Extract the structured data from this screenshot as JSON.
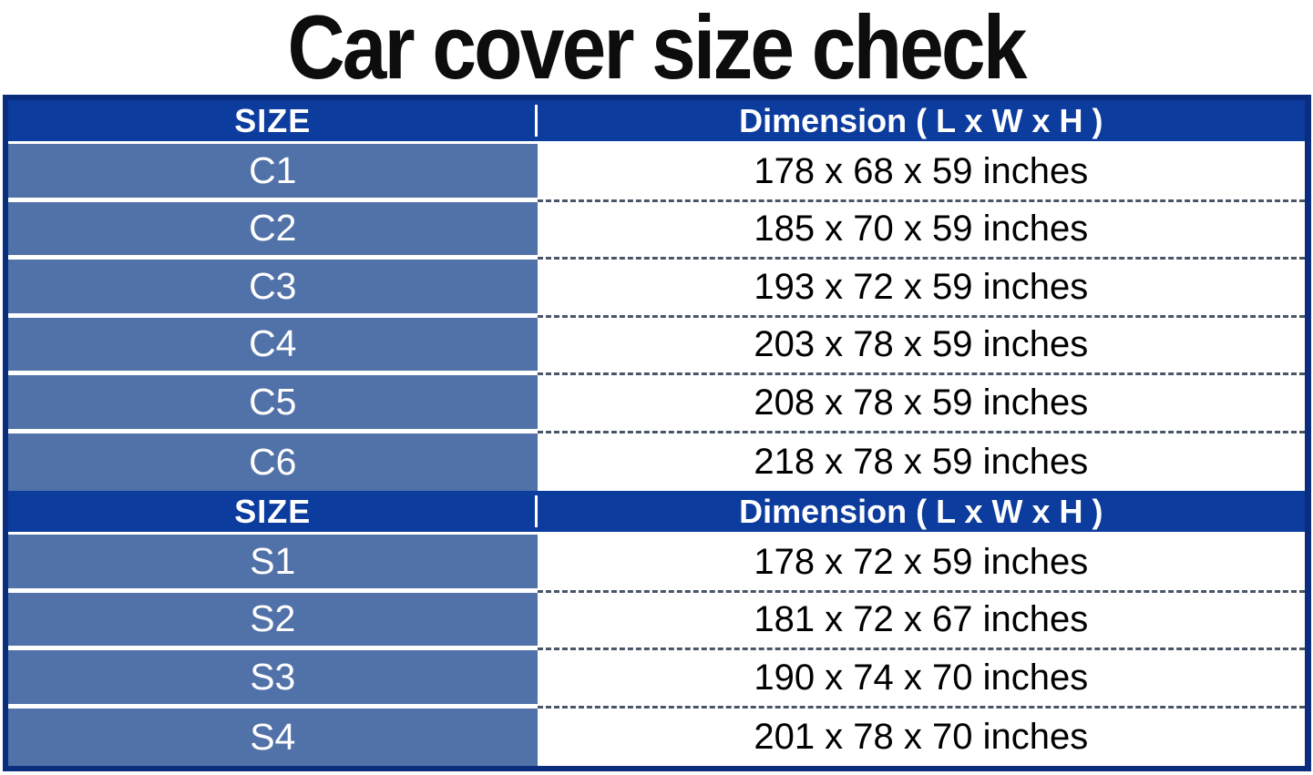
{
  "title": "Car cover size check",
  "colors": {
    "header_bg": "#0c3c9d",
    "row_label_bg": "#5171a9",
    "outer_border": "#0a2e7d",
    "dashed_separator": "#4a5568",
    "header_text": "#ffffff",
    "row_label_text": "#ffffff",
    "dimension_text": "#000000"
  },
  "tables": [
    {
      "header": {
        "size": "SIZE",
        "dimension": "Dimension ( L x W x H )"
      },
      "rows": [
        {
          "size": "C1",
          "dimension": "178 x 68 x 59 inches"
        },
        {
          "size": "C2",
          "dimension": "185 x 70 x 59 inches"
        },
        {
          "size": "C3",
          "dimension": "193 x 72 x 59 inches"
        },
        {
          "size": "C4",
          "dimension": "203 x 78 x 59 inches"
        },
        {
          "size": "C5",
          "dimension": "208 x 78 x 59 inches"
        },
        {
          "size": "C6",
          "dimension": "218 x 78 x 59 inches"
        }
      ]
    },
    {
      "header": {
        "size": "SIZE",
        "dimension": "Dimension ( L x W x H )"
      },
      "rows": [
        {
          "size": "S1",
          "dimension": "178 x 72 x 59 inches"
        },
        {
          "size": "S2",
          "dimension": "181 x 72 x 67 inches"
        },
        {
          "size": "S3",
          "dimension": "190 x 74 x 70 inches"
        },
        {
          "size": "S4",
          "dimension": "201 x 78 x 70 inches"
        }
      ]
    }
  ],
  "chart_data": [
    {
      "type": "table",
      "title": "Car cover size check - C sizes",
      "columns": [
        "SIZE",
        "Dimension ( L x W x H )"
      ],
      "rows": [
        [
          "C1",
          "178 x 68 x 59 inches"
        ],
        [
          "C2",
          "185 x 70 x 59 inches"
        ],
        [
          "C3",
          "193 x 72 x 59 inches"
        ],
        [
          "C4",
          "203 x 78 x 59 inches"
        ],
        [
          "C5",
          "208 x 78 x 59 inches"
        ],
        [
          "C6",
          "218 x 78 x 59 inches"
        ]
      ]
    },
    {
      "type": "table",
      "title": "Car cover size check - S sizes",
      "columns": [
        "SIZE",
        "Dimension ( L x W x H )"
      ],
      "rows": [
        [
          "S1",
          "178 x 72 x 59 inches"
        ],
        [
          "S2",
          "181 x 72 x 67 inches"
        ],
        [
          "S3",
          "190 x 74 x 70 inches"
        ],
        [
          "S4",
          "201 x 78 x 70 inches"
        ]
      ]
    }
  ]
}
